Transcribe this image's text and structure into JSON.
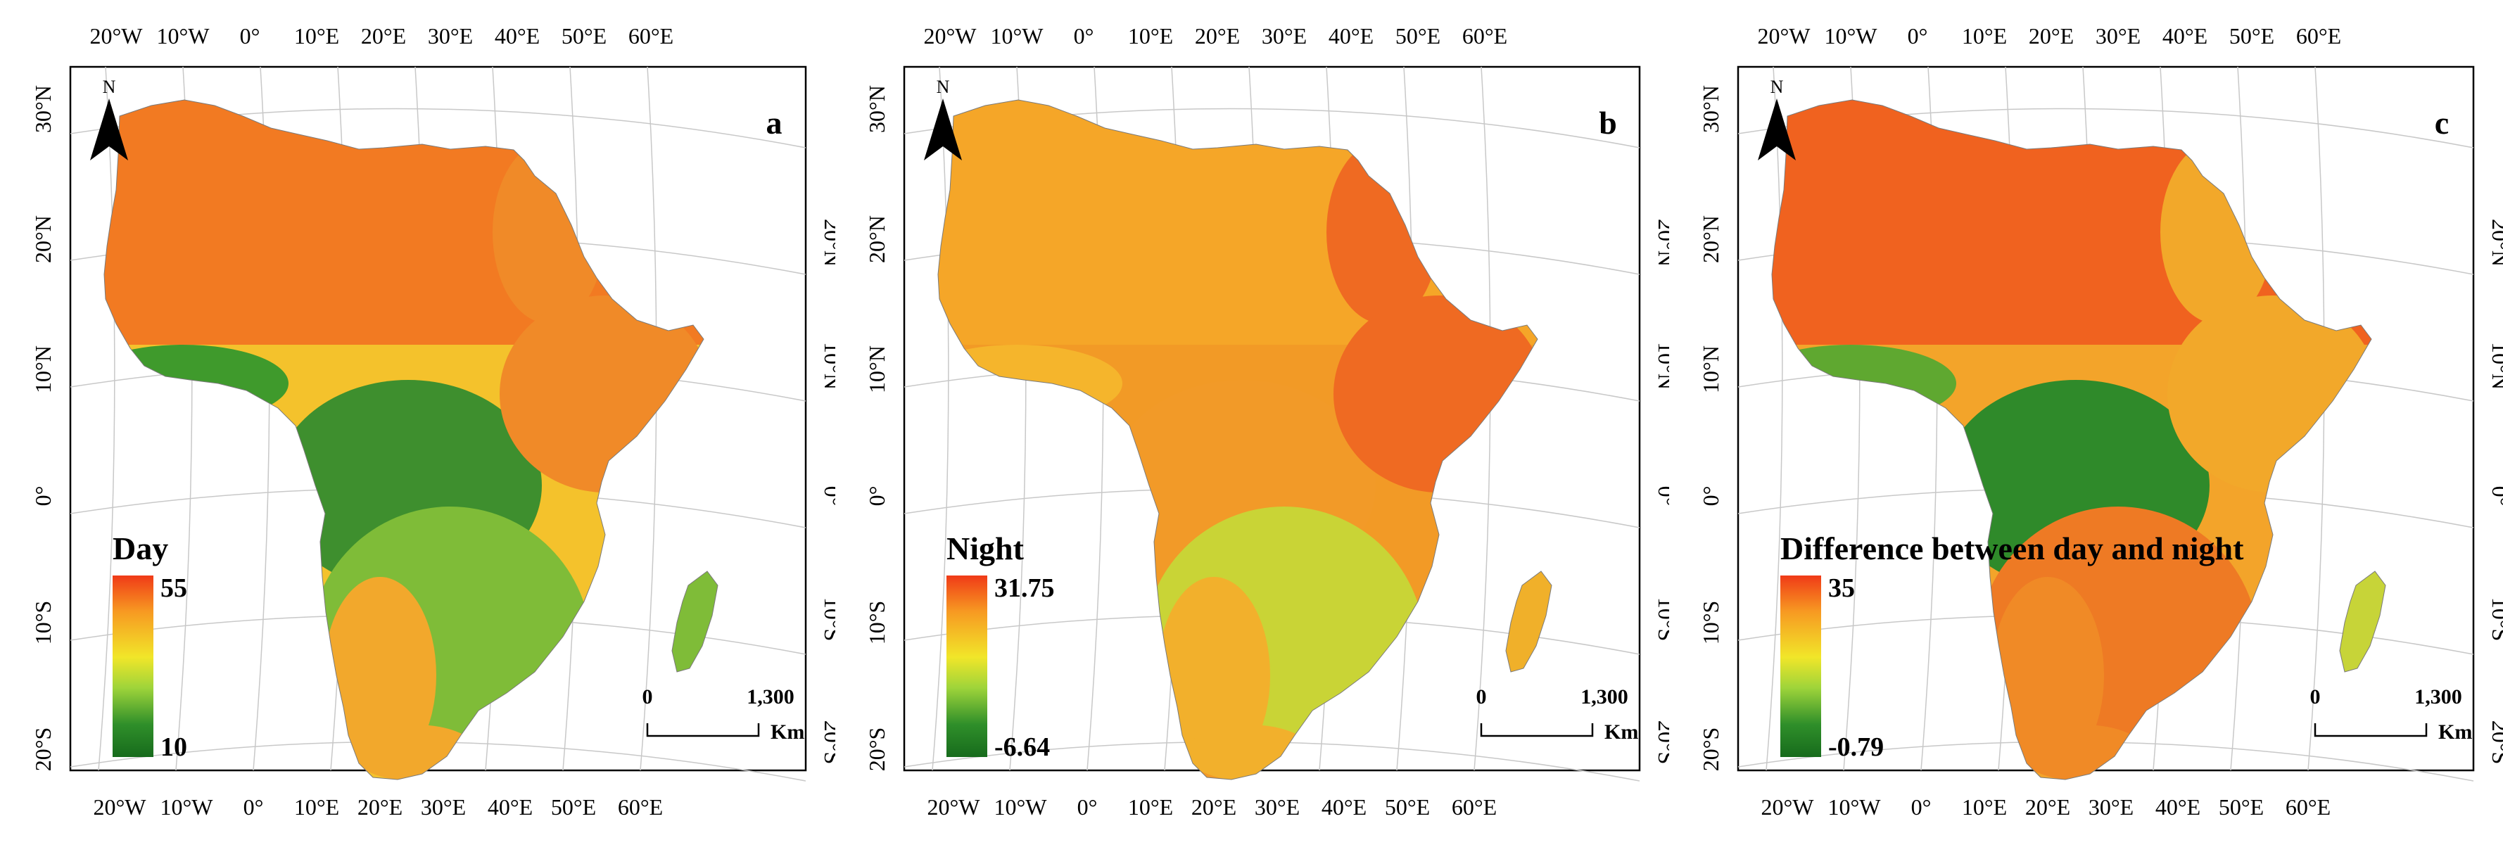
{
  "colors": {
    "hot": "#f03a17",
    "orange": "#f79a22",
    "yellow": "#f1e629",
    "light_green": "#9ed43a",
    "green": "#2f8f2a",
    "dark_green": "#176b1c"
  },
  "shared": {
    "north_label": "N",
    "north_icon": "north-arrow-icon",
    "scalebar_zero": "0",
    "scalebar_value": "1,300",
    "scalebar_unit": "Km",
    "top_lon_labels": [
      "20°W",
      "10°W",
      "0°",
      "10°E",
      "20°E",
      "30°E",
      "40°E",
      "50°E",
      "60°E"
    ],
    "bottom_lon_labels": [
      "20°W",
      "10°W",
      "0°",
      "10°E",
      "20°E",
      "30°E",
      "40°E",
      "50°E",
      "60°E"
    ],
    "left_lat_labels": [
      "30°N",
      "20°N",
      "10°N",
      "0°",
      "10°S",
      "20°S"
    ],
    "right_lat_labels": [
      "20°N",
      "10°N",
      "0°",
      "10°S",
      "20°S"
    ]
  },
  "panels": [
    {
      "letter": "a",
      "legend_title": "Day",
      "legend_max": "55",
      "legend_min": "10",
      "gradient": [
        "#f03a17",
        "#f79a22",
        "#f1e629",
        "#9ed43a",
        "#2f8f2a",
        "#176b1c"
      ],
      "regions": {
        "sahara": "#f27a22",
        "sahel": "#f4c22c",
        "west_coast": "#3f9a2c",
        "congo": "#3e8f2e",
        "east": "#f08a28",
        "south": "#7fbc38",
        "kalahari": "#f2a82c",
        "madagascar": "#7fbc38"
      }
    },
    {
      "letter": "b",
      "legend_title": "Night",
      "legend_max": "31.75",
      "legend_min": "-6.64",
      "gradient": [
        "#f03a17",
        "#f79a22",
        "#f1e629",
        "#9ed43a",
        "#2f8f2a",
        "#176b1c"
      ],
      "regions": {
        "sahara": "#f5a628",
        "sahel": "#f29a26",
        "west_coast": "#f5b52c",
        "congo": "#f29a28",
        "east": "#ef6a22",
        "south": "#c9d436",
        "kalahari": "#f2b02c",
        "madagascar": "#f0b02a"
      }
    },
    {
      "letter": "c",
      "legend_title": "Difference between day and night",
      "legend_max": "35",
      "legend_min": "-0.79",
      "gradient": [
        "#f03a17",
        "#f79a22",
        "#f1e629",
        "#9ed43a",
        "#2f8f2a",
        "#176b1c"
      ],
      "regions": {
        "sahara": "#f0621f",
        "sahel": "#f3a42a",
        "west_coast": "#5fa830",
        "congo": "#2f8a2a",
        "east": "#f2a82a",
        "south": "#ee7a24",
        "kalahari": "#f08a26",
        "madagascar": "#c7d438"
      }
    }
  ]
}
